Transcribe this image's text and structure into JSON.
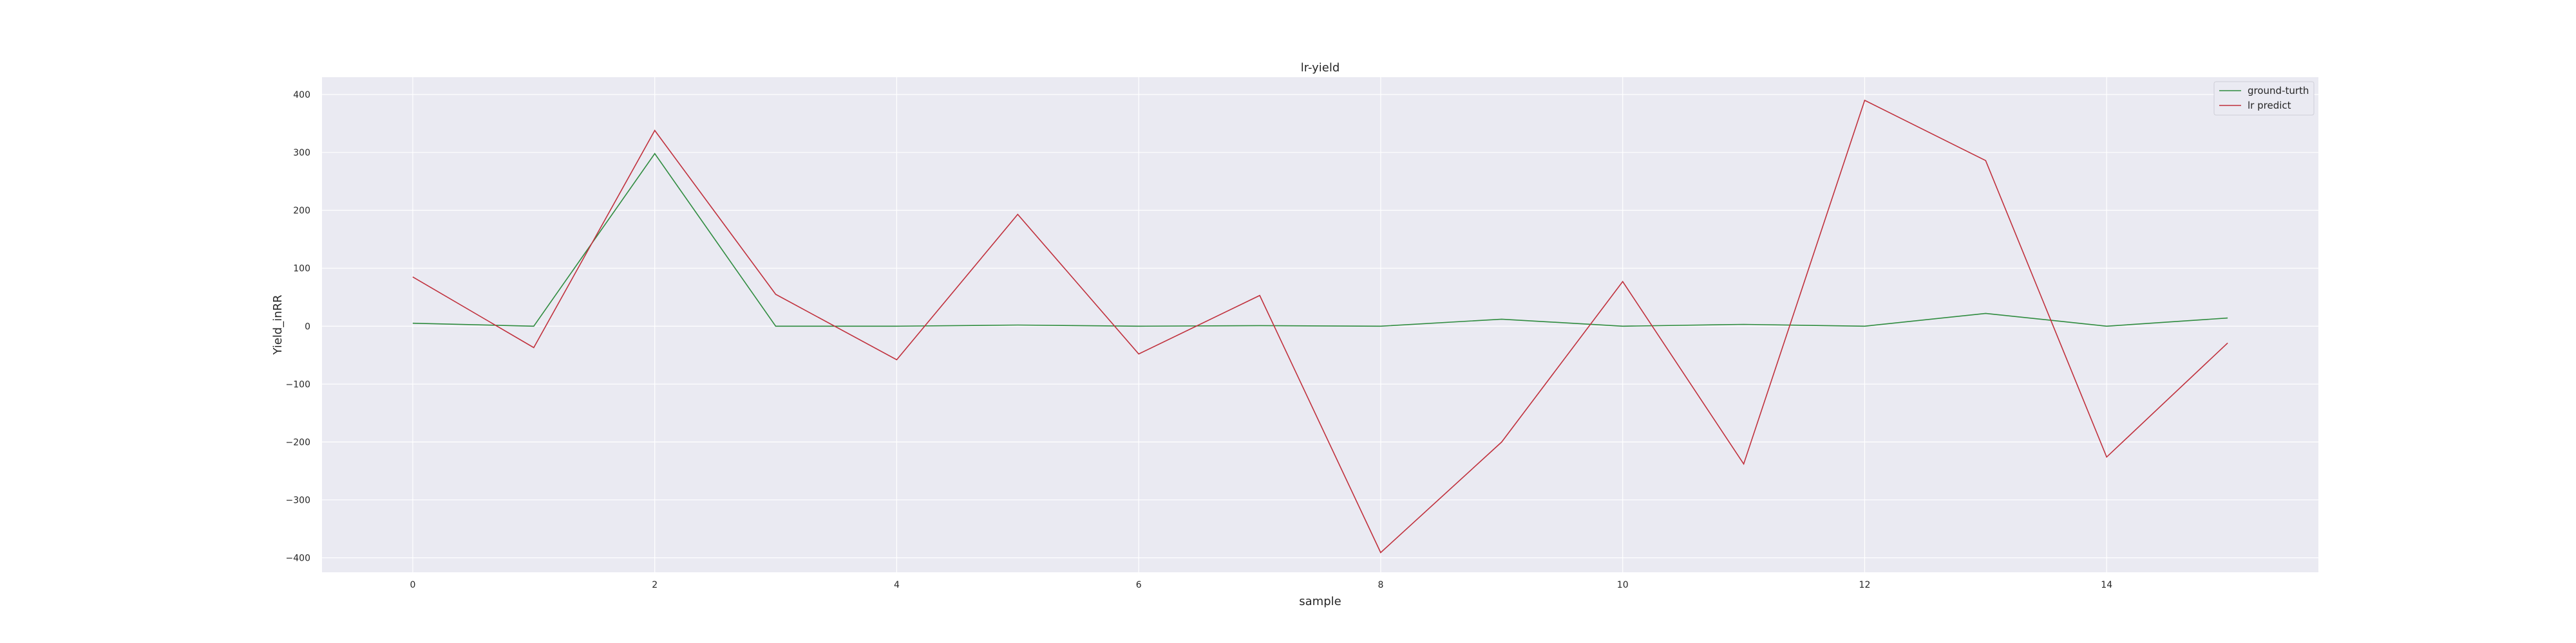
{
  "chart_data": {
    "type": "line",
    "title": "lr-yield",
    "xlabel": "sample",
    "ylabel": "Yield_inRR",
    "x": [
      0,
      1,
      2,
      3,
      4,
      5,
      6,
      7,
      8,
      9,
      10,
      11,
      12,
      13,
      14,
      15
    ],
    "xlim": [
      -0.75,
      15.75
    ],
    "ylim": [
      -425,
      430
    ],
    "xticks": [
      0,
      2,
      4,
      6,
      8,
      10,
      12,
      14
    ],
    "yticks": [
      -400,
      -300,
      -200,
      -100,
      0,
      100,
      200,
      300,
      400
    ],
    "xtick_labels": [
      "0",
      "2",
      "4",
      "6",
      "8",
      "10",
      "12",
      "14"
    ],
    "ytick_labels": [
      "−400",
      "−300",
      "−200",
      "−100",
      "0",
      "100",
      "200",
      "300",
      "400"
    ],
    "grid": true,
    "legend_position": "top-right",
    "background": "#eaeaf2",
    "series": [
      {
        "name": "ground-turth",
        "color": "#2e8b3e",
        "values": [
          5,
          0,
          298,
          0,
          0,
          2,
          0,
          1,
          0,
          12,
          0,
          3,
          0,
          22,
          0,
          14
        ]
      },
      {
        "name": "lr predict",
        "color": "#c0303c",
        "values": [
          85,
          -37,
          338,
          55,
          -58,
          193,
          -48,
          53,
          -391,
          -200,
          77,
          -238,
          390,
          286,
          -226,
          -29
        ]
      }
    ]
  }
}
